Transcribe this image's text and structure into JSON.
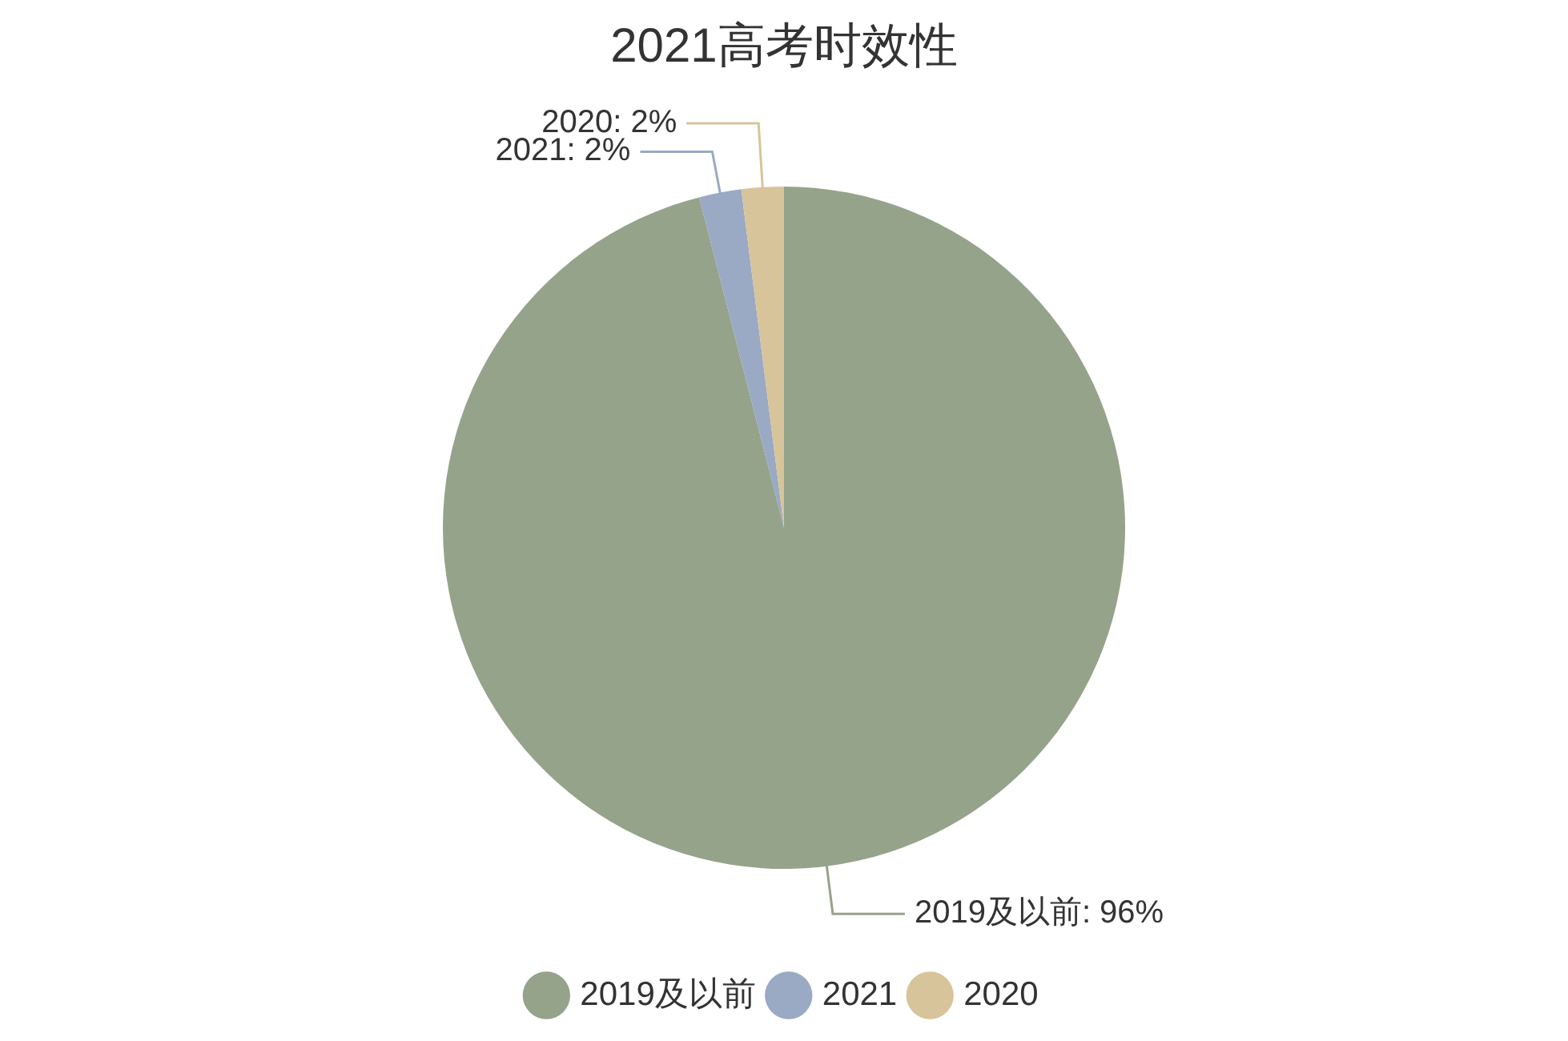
{
  "chart_data": {
    "type": "pie",
    "title": "2021高考时效性",
    "categories": [
      "2019及以前",
      "2021",
      "2020"
    ],
    "values": [
      96,
      2,
      2
    ],
    "colors": [
      "#95a38a",
      "#9aa9c4",
      "#d8c49a"
    ],
    "value_labels": [
      "2019及以前: 96%",
      "2021: 2%",
      "2020: 2%"
    ],
    "legend": "bottom"
  }
}
